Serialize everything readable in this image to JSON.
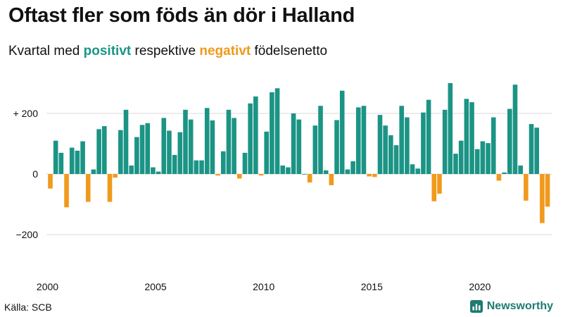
{
  "header": {
    "title": "Oftast fler som föds än dör i Halland",
    "subtitle_prefix": "Kvartal med ",
    "subtitle_positive": "positivt",
    "subtitle_middle": " respektive ",
    "subtitle_negative": "negativt",
    "subtitle_suffix": " födelsenetto"
  },
  "footer": {
    "source": "Källa: SCB",
    "brand": "Newsworthy"
  },
  "colors": {
    "positive": "#1b9485",
    "negative": "#f09a1c",
    "grid": "#d9d9d9",
    "brand": "#1e7a72"
  },
  "chart_data": {
    "type": "bar",
    "title": "Oftast fler som föds än dör i Halland",
    "subtitle": "Kvartal med positivt respektive negativt födelsenetto",
    "xlabel": "",
    "ylabel": "",
    "ylim": [
      -220,
      310
    ],
    "y_ticks": [
      {
        "value": 200,
        "label": "+ 200"
      },
      {
        "value": 0,
        "label": "0"
      },
      {
        "value": -200,
        "label": "−200"
      }
    ],
    "x_ticks": [
      "2000",
      "2005",
      "2010",
      "2015",
      "2020"
    ],
    "start_year": 2000,
    "grid": true,
    "legend": "none",
    "values": [
      -48,
      110,
      70,
      -110,
      87,
      77,
      108,
      -92,
      15,
      148,
      158,
      -92,
      -12,
      145,
      212,
      28,
      122,
      162,
      168,
      22,
      8,
      185,
      143,
      63,
      138,
      212,
      180,
      45,
      45,
      218,
      177,
      -5,
      75,
      212,
      185,
      -15,
      70,
      233,
      256,
      -5,
      140,
      270,
      283,
      28,
      22,
      200,
      180,
      0,
      -28,
      160,
      225,
      12,
      -37,
      178,
      275,
      15,
      42,
      220,
      225,
      -8,
      -10,
      195,
      160,
      128,
      95,
      225,
      187,
      32,
      18,
      203,
      245,
      -90,
      -65,
      212,
      300,
      67,
      110,
      248,
      237,
      82,
      108,
      102,
      187,
      -22,
      5,
      215,
      295,
      28,
      -88,
      165,
      153,
      -162,
      -108
    ]
  }
}
